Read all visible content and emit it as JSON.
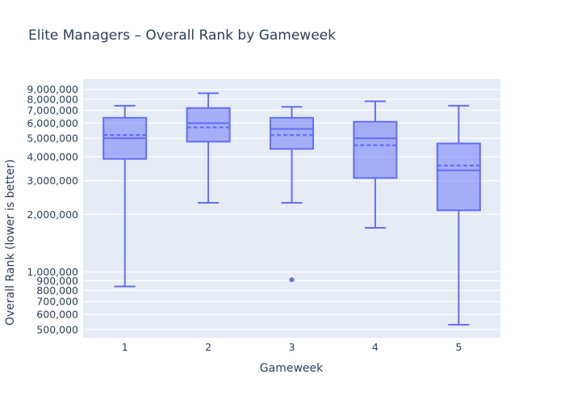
{
  "colors": {
    "paper_background": "#ffffff",
    "plot_background": "#e5ecf6",
    "gridline": "#ffffff",
    "box_line": "#636efa",
    "box_fill": "rgba(99,110,250,0.5)",
    "text": "#2a3f5f"
  },
  "chart_data": {
    "type": "box",
    "title": "Elite Managers – Overall Rank by Gameweek",
    "xlabel": "Gameweek",
    "ylabel": "Overall Rank (lower is better)",
    "categories": [
      "1",
      "2",
      "3",
      "4",
      "5"
    ],
    "grid": true,
    "legend": false,
    "yaxis": {
      "scale": "log",
      "range_log10": [
        5.656,
        7.008
      ],
      "tick_values": [
        9000000,
        8000000,
        7000000,
        6000000,
        5000000,
        4000000,
        3000000,
        2000000,
        1000000,
        900000,
        800000,
        700000,
        600000,
        500000
      ],
      "tick_labels": [
        "9,000,000",
        "8,000,000",
        "7,000,000",
        "6,000,000",
        "5,000,000",
        "4,000,000",
        "3,000,000",
        "2,000,000",
        "1,000,000",
        "900,000",
        "800,000",
        "700,000",
        "600,000",
        "500,000"
      ]
    },
    "series": [
      {
        "category": "1",
        "whisker_low": 840000,
        "q1": 3900000,
        "median": 5000000,
        "q3": 6400000,
        "whisker_high": 7400000,
        "mean": 5200000,
        "outliers": []
      },
      {
        "category": "2",
        "whisker_low": 2300000,
        "q1": 4800000,
        "median": 6000000,
        "q3": 7200000,
        "whisker_high": 8600000,
        "mean": 5700000,
        "outliers": []
      },
      {
        "category": "3",
        "whisker_low": 2300000,
        "q1": 4400000,
        "median": 5600000,
        "q3": 6400000,
        "whisker_high": 7300000,
        "mean": 5200000,
        "outliers": [
          910000
        ]
      },
      {
        "category": "4",
        "whisker_low": 1700000,
        "q1": 3100000,
        "median": 5000000,
        "q3": 6100000,
        "whisker_high": 7800000,
        "mean": 4600000,
        "outliers": []
      },
      {
        "category": "5",
        "whisker_low": 530000,
        "q1": 2100000,
        "median": 3400000,
        "q3": 4700000,
        "whisker_high": 7400000,
        "mean": 3600000,
        "outliers": []
      }
    ]
  }
}
